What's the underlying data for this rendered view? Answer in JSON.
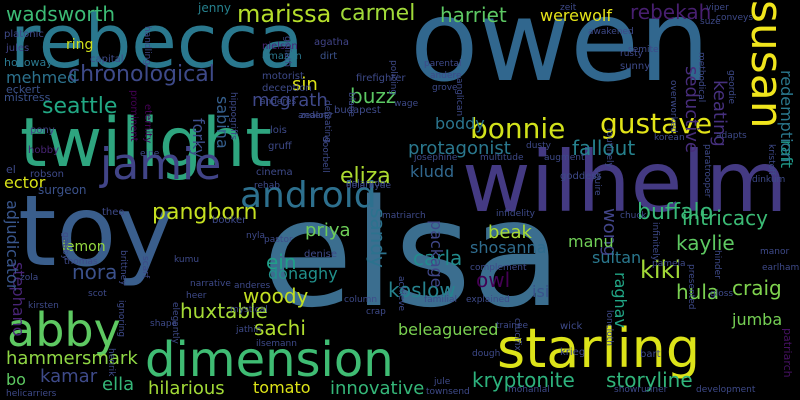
{
  "words": [
    {
      "text": "elsa",
      "color": "#3b6e8f"
    },
    {
      "text": "toy",
      "color": "#3a5e8c"
    },
    {
      "text": "owen",
      "color": "#31678e"
    },
    {
      "text": "rebecca",
      "color": "#2a788e"
    },
    {
      "text": "twilight",
      "color": "#2ea57f"
    },
    {
      "text": "wilhelm",
      "color": "#443a83"
    },
    {
      "text": "starling",
      "color": "#dce319"
    },
    {
      "text": "dimension",
      "color": "#3fbc73"
    },
    {
      "text": "abby",
      "color": "#5ec962"
    },
    {
      "text": "jamie",
      "color": "#414487"
    },
    {
      "text": "susan",
      "color": "#f0e51c"
    },
    {
      "text": "bonnie",
      "color": "#d2e21b"
    },
    {
      "text": "gustave",
      "color": "#e2e418"
    },
    {
      "text": "android",
      "color": "#2d708e"
    },
    {
      "text": "marissa",
      "color": "#b5de2b"
    },
    {
      "text": "carmel",
      "color": "#a0da39"
    },
    {
      "text": "harriet",
      "color": "#5dc863"
    },
    {
      "text": "rebekah",
      "color": "#481f70"
    },
    {
      "text": "wadsworth",
      "color": "#3cbb75"
    },
    {
      "text": "werewolf",
      "color": "#e5e419"
    },
    {
      "text": "chronological",
      "color": "#3e4a89"
    },
    {
      "text": "seattle",
      "color": "#22a884"
    },
    {
      "text": "protagonist",
      "color": "#2a788e"
    },
    {
      "text": "fallout",
      "color": "#26828e"
    },
    {
      "text": "eliza",
      "color": "#addc30"
    },
    {
      "text": "pangborn",
      "color": "#c5e021"
    },
    {
      "text": "buffalo",
      "color": "#37b878"
    },
    {
      "text": "intricacy",
      "color": "#3bbb75"
    },
    {
      "text": "kaylie",
      "color": "#5ec962"
    },
    {
      "text": "kiki",
      "color": "#a2da37"
    },
    {
      "text": "hula",
      "color": "#7ad151"
    },
    {
      "text": "craig",
      "color": "#7fd34e"
    },
    {
      "text": "kryptonite",
      "color": "#2db27d"
    },
    {
      "text": "storyline",
      "color": "#31b57b"
    },
    {
      "text": "beleaguered",
      "color": "#7ad151"
    },
    {
      "text": "innovative",
      "color": "#35b779"
    },
    {
      "text": "hilarious",
      "color": "#a2da37"
    },
    {
      "text": "tomato",
      "color": "#dde318"
    },
    {
      "text": "ella",
      "color": "#35b779"
    },
    {
      "text": "kamar",
      "color": "#3e4a89"
    },
    {
      "text": "hammersmark",
      "color": "#8fd744"
    },
    {
      "text": "huxtable",
      "color": "#a5db36"
    },
    {
      "text": "woody",
      "color": "#c2df23"
    },
    {
      "text": "sachi",
      "color": "#b0dd2f"
    },
    {
      "text": "koslow",
      "color": "#26828e"
    },
    {
      "text": "carla",
      "color": "#228c8d"
    },
    {
      "text": "sandy",
      "color": "#2c728e"
    },
    {
      "text": "priya",
      "color": "#6ece58"
    },
    {
      "text": "ein",
      "color": "#1f9f88"
    },
    {
      "text": "donaghy",
      "color": "#21918c"
    },
    {
      "text": "kludd",
      "color": "#31688e"
    },
    {
      "text": "beak",
      "color": "#a8db34"
    },
    {
      "text": "wong",
      "color": "#414487"
    },
    {
      "text": "manu",
      "color": "#70cf57"
    },
    {
      "text": "sultan",
      "color": "#2a788e"
    },
    {
      "text": "owl",
      "color": "#440154"
    },
    {
      "text": "isi",
      "color": "#3a538b"
    },
    {
      "text": "nora",
      "color": "#3b518b"
    },
    {
      "text": "stephano",
      "color": "#482475"
    },
    {
      "text": "adjudicator",
      "color": "#39568c"
    },
    {
      "text": "lemon",
      "color": "#95d840"
    },
    {
      "text": "ector",
      "color": "#d8e219"
    },
    {
      "text": "mehmed",
      "color": "#2c728e"
    },
    {
      "text": "boddy",
      "color": "#2b758e"
    },
    {
      "text": "sabina",
      "color": "#355f8d"
    },
    {
      "text": "mcgrath",
      "color": "#3f4889"
    },
    {
      "text": "buzz",
      "color": "#5cc863"
    },
    {
      "text": "sin",
      "color": "#dde318"
    },
    {
      "text": "forky",
      "color": "#3d4e8a"
    },
    {
      "text": "seductive",
      "color": "#472d7b"
    },
    {
      "text": "keating",
      "color": "#46307e"
    },
    {
      "text": "raft",
      "color": "#1f9a8a"
    },
    {
      "text": "redemption",
      "color": "#2a788e"
    },
    {
      "text": "ring",
      "color": "#d0e11c"
    },
    {
      "text": "jenny",
      "color": "#26818e"
    },
    {
      "text": "shosanna",
      "color": "#2f6c8e"
    },
    {
      "text": "package",
      "color": "#3f4788"
    },
    {
      "text": "raghav",
      "color": "#21a585"
    },
    {
      "text": "jumba",
      "color": "#75d054"
    },
    {
      "text": "bo",
      "color": "#5ec962"
    },
    {
      "text": "patriarch",
      "color": "#471164"
    }
  ],
  "small_words": [
    "platonic",
    "jules",
    "holloway",
    "eckert",
    "mistress",
    "pony",
    "hobby",
    "el",
    "robson",
    "surgeon",
    "capital",
    "prominent",
    "eternity",
    "nielson",
    "amazon",
    "agatha",
    "dirt",
    "motorist",
    "deception",
    "zeit",
    "suze",
    "viper",
    "conveys",
    "semite",
    "awakened",
    "parental",
    "andere",
    "grove",
    "anglican",
    "policing",
    "firefighter",
    "blane",
    "wage",
    "budapest",
    "lois",
    "doorbell",
    "zealot",
    "anderes",
    "gruff",
    "hippogriffs",
    "cinema",
    "rehab",
    "dolaryde",
    "denise",
    "josephine",
    "multitude",
    "dusty",
    "augment",
    "korean",
    "adapts",
    "goddess",
    "squire",
    "routinely",
    "overworked",
    "dinkum",
    "kristoff",
    "paratrooper",
    "manor",
    "earlham",
    "rusty",
    "sunny",
    "methodical",
    "geordie",
    "gloss",
    "hinder",
    "wick",
    "krieg",
    "bart",
    "loncloth",
    "development",
    "showrunner",
    "mohanlal",
    "jule",
    "townsend",
    "dough",
    "trainee",
    "crucifix",
    "explained",
    "column",
    "crap",
    "familial",
    "achieve",
    "matriarch",
    "infidelity",
    "complement",
    "chuck",
    "pamela",
    "infinitely",
    "presented",
    "theo",
    "booker",
    "nyla",
    "pastor",
    "kumu",
    "scarf",
    "brittney",
    "elegantly",
    "shape",
    "henrik",
    "heer",
    "narrative",
    "anderes",
    "gabby",
    "zola",
    "kirsten",
    "thomas",
    "scot",
    "mystical",
    "jathin",
    "ilsemann",
    "helicarriers",
    "ignoring",
    "handling",
    "goliath",
    "anderer",
    "defeating",
    "eine",
    "dolarhyde"
  ]
}
